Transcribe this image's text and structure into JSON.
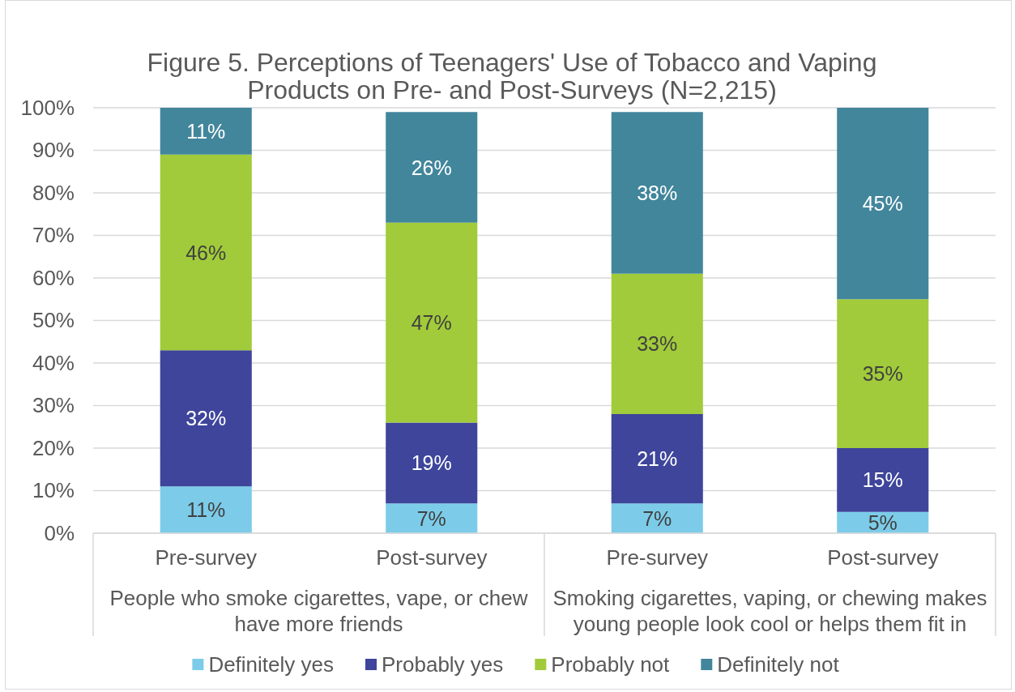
{
  "chart_data": {
    "type": "bar",
    "title": "Figure 5. Perceptions of Teenagers' Use of Tobacco and Vaping Products on Pre- and Post-Surveys (N=2,215)",
    "categories": [
      "Pre-survey",
      "Post-survey",
      "Pre-survey",
      "Post-survey"
    ],
    "annotations": [
      "People who smoke cigarettes, vape, or chew have more friends",
      "Smoking cigarettes, vaping, or chewing makes young people look cool or helps them fit in"
    ],
    "stacked": true,
    "series": [
      {
        "name": "Definitely yes",
        "color": "#7ccce9",
        "values": [
          11,
          7,
          7,
          5
        ],
        "value_labels": [
          "11%",
          "7%",
          "7%",
          "5%"
        ]
      },
      {
        "name": "Probably yes",
        "color": "#3e459b",
        "values": [
          32,
          19,
          21,
          15
        ],
        "value_labels": [
          "32%",
          "19%",
          "21%",
          "15%"
        ]
      },
      {
        "name": "Probably not",
        "color": "#a1cb3a",
        "values": [
          46,
          47,
          33,
          35
        ],
        "value_labels": [
          "46%",
          "47%",
          "33%",
          "35%"
        ]
      },
      {
        "name": "Definitely not",
        "color": "#42869c",
        "values": [
          11,
          26,
          38,
          45
        ],
        "value_labels": [
          "11%",
          "26%",
          "38%",
          "45%"
        ]
      }
    ],
    "ylim": [
      0,
      100
    ],
    "yticks": [
      {
        "value": 0,
        "label": "0%"
      },
      {
        "value": 10,
        "label": "10%"
      },
      {
        "value": 20,
        "label": "20%"
      },
      {
        "value": 30,
        "label": "30%"
      },
      {
        "value": 40,
        "label": "40%"
      },
      {
        "value": 50,
        "label": "50%"
      },
      {
        "value": 60,
        "label": "60%"
      },
      {
        "value": 70,
        "label": "70%"
      },
      {
        "value": 80,
        "label": "80%"
      },
      {
        "value": 90,
        "label": "90%"
      },
      {
        "value": 100,
        "label": "100%"
      }
    ],
    "grid": "y",
    "legend": "bottom"
  }
}
